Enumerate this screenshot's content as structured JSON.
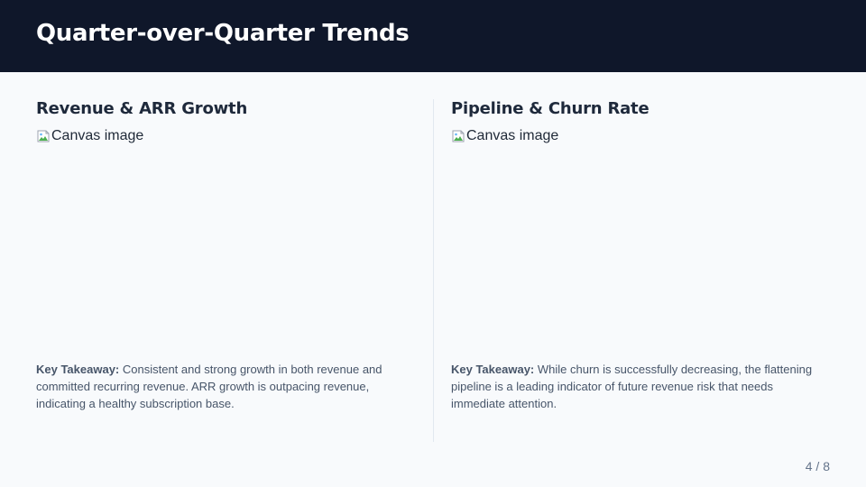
{
  "header": {
    "title": "Quarter-over-Quarter Trends"
  },
  "panels": [
    {
      "title": "Revenue & ARR Growth",
      "image_alt": "Canvas image",
      "takeaway_label": "Key Takeaway:",
      "takeaway_text": " Consistent and strong growth in both revenue and committed recurring revenue. ARR growth is outpacing revenue, indicating a healthy subscription base."
    },
    {
      "title": "Pipeline & Churn Rate",
      "image_alt": "Canvas image",
      "takeaway_label": "Key Takeaway:",
      "takeaway_text": " While churn is successfully decreasing, the flattening pipeline is a leading indicator of future revenue risk that needs immediate attention."
    }
  ],
  "footer": {
    "page_number": "4 / 8"
  },
  "colors": {
    "header_bg": "#0f172a",
    "page_bg": "#f8fafc",
    "divider": "#e2e8f0"
  },
  "icons": {
    "broken_image": "broken-image-icon"
  }
}
